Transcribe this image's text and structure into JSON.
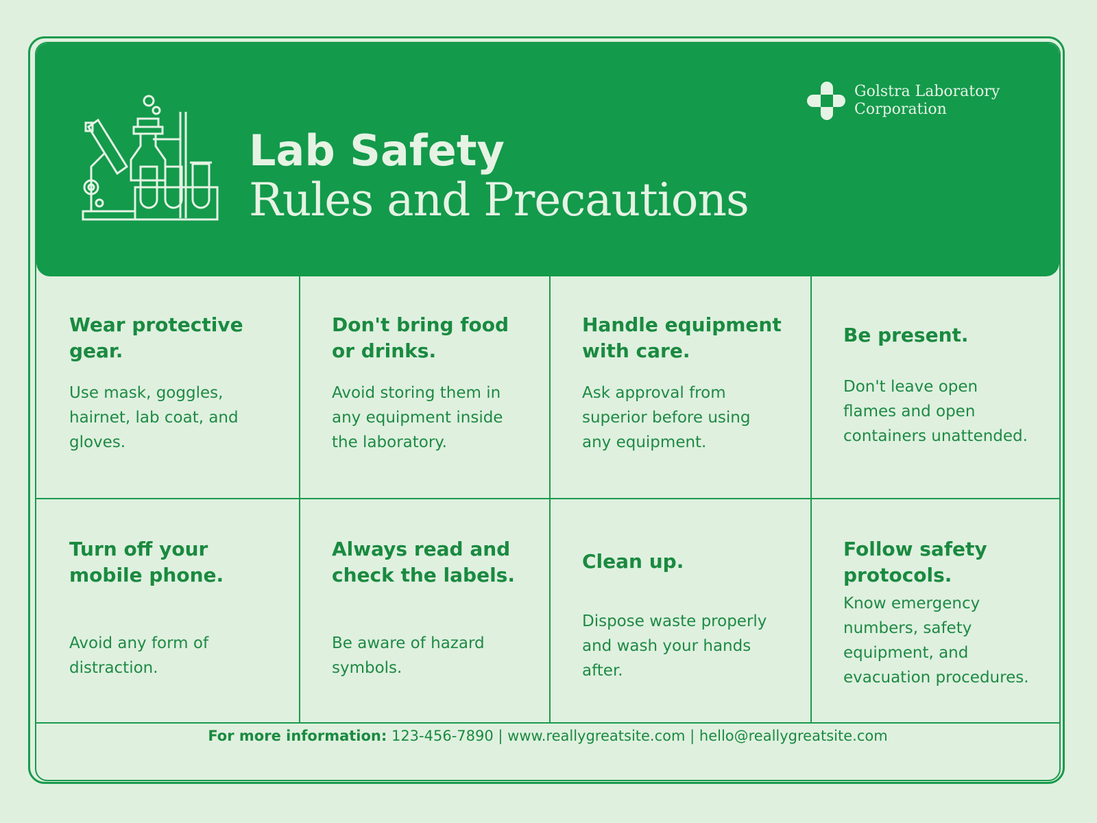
{
  "header": {
    "title": "Lab Safety",
    "subtitle": "Rules and Precautions",
    "company": [
      "Golstra Laboratory",
      "Corporation"
    ]
  },
  "rules": [
    {
      "title": "Wear protective gear.",
      "body": "Use mask, goggles, hairnet, lab coat, and gloves."
    },
    {
      "title": "Don't bring food or drinks.",
      "body": "Avoid storing them in any equipment inside the laboratory."
    },
    {
      "title": "Handle equipment with care.",
      "body": "Ask approval from superior before using any equipment."
    },
    {
      "title": "Be present.",
      "body": "Don't leave open flames and open containers unattended."
    },
    {
      "title": "Turn off your mobile phone.",
      "body": "Avoid any form of distraction."
    },
    {
      "title": "Always read and check the labels.",
      "body": "Be aware of hazard symbols."
    },
    {
      "title": "Clean up.",
      "body": "Dispose waste properly and wash your hands after."
    },
    {
      "title": "Follow safety protocols.",
      "body": "Know emergency numbers, safety equipment, and evacuation procedures."
    }
  ],
  "footer": {
    "label": "For more information:",
    "text": "123-456-7890 | www.reallygreatsite.com | hello@reallygreatsite.com"
  }
}
